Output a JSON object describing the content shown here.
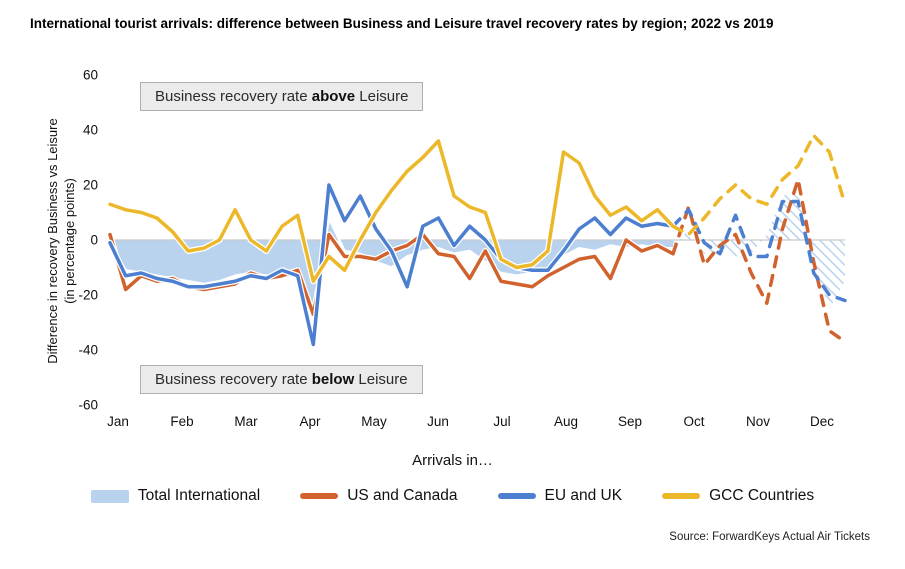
{
  "title": "International tourist arrivals: difference between Business and Leisure travel recovery rates by region; 2022 vs 2019",
  "annotations": {
    "above": {
      "prefix": "Business recovery rate ",
      "bold": "above",
      "suffix": " Leisure"
    },
    "below": {
      "prefix": "Business recovery rate ",
      "bold": "below",
      "suffix": " Leisure"
    }
  },
  "source": "Source: ForwardKeys Actual Air Tickets",
  "chart_data": {
    "type": "line",
    "title": "International tourist arrivals: difference between Business and Leisure travel recovery rates by region; 2022 vs 2019",
    "xlabel": "Arrivals in…",
    "ylabel_line1": "Difference in recovery Business vs Leisure",
    "ylabel_line2": "(in percentage points)",
    "ylim": [
      -60,
      60
    ],
    "y_ticks": [
      60,
      40,
      20,
      0,
      -20,
      -40,
      -60
    ],
    "x_tick_labels": [
      "Jan",
      "Feb",
      "Mar",
      "Apr",
      "May",
      "Jun",
      "Jul",
      "Aug",
      "Sep",
      "Oct",
      "Nov",
      "Dec"
    ],
    "points_per_month": 4,
    "forecast_start_index": 36,
    "forecast_style": "dashed-and-hatched",
    "grid": "zero-line-only",
    "zero_line_color": "#c9c9c9",
    "legend_position": "bottom",
    "series": [
      {
        "name": "Total International",
        "type": "area",
        "color": "#b9d3ee",
        "values": [
          -1,
          -11,
          -12,
          -13,
          -14,
          -15,
          -16,
          -15,
          -13,
          -12,
          -13,
          -14,
          -13,
          -25,
          8,
          -4,
          -5,
          -8,
          -10,
          -6,
          -4,
          -3,
          -5,
          -4,
          -8,
          -12,
          -13,
          -12,
          -12,
          -6,
          -3,
          -4,
          -2,
          -3,
          -2,
          -3,
          -3,
          4,
          -5,
          -4,
          -6,
          -5,
          2,
          16,
          18,
          -8,
          -25,
          -15
        ]
      },
      {
        "name": "US and Canada",
        "type": "line",
        "color": "#d2622d",
        "values": [
          2,
          -18,
          -13,
          -15,
          -14,
          -17,
          -18,
          -17,
          -16,
          -12,
          -14,
          -13,
          -11,
          -27,
          2,
          -6,
          -6,
          -7,
          -4,
          -2,
          2,
          -5,
          -6,
          -14,
          -4,
          -15,
          -16,
          -17,
          -13,
          -10,
          -7,
          -6,
          -14,
          0,
          -4,
          -2,
          -5,
          12,
          -9,
          -2,
          2,
          -12,
          -23,
          4,
          22,
          -8,
          -33,
          -37
        ]
      },
      {
        "name": "EU and UK",
        "type": "line",
        "color": "#4d7fd0",
        "values": [
          -1,
          -13,
          -12,
          -14,
          -15,
          -17,
          -17,
          -16,
          -15,
          -13,
          -14,
          -11,
          -13,
          -38,
          20,
          7,
          16,
          4,
          -4,
          -17,
          5,
          8,
          -2,
          5,
          0,
          -7,
          -10,
          -11,
          -11,
          -4,
          4,
          8,
          2,
          8,
          5,
          6,
          5,
          11,
          -1,
          -5,
          9,
          -6,
          -6,
          14,
          14,
          -12,
          -20,
          -22
        ]
      },
      {
        "name": "GCC Countries",
        "type": "line",
        "color": "#ecb82a",
        "values": [
          13,
          11,
          10,
          8,
          3,
          -4,
          -3,
          0,
          11,
          0,
          -4,
          5,
          9,
          -15,
          -6,
          -11,
          0,
          10,
          18,
          25,
          30,
          36,
          16,
          12,
          10,
          -7,
          -10,
          -9,
          -4,
          32,
          28,
          16,
          9,
          12,
          7,
          11,
          5,
          2,
          8,
          15,
          20,
          15,
          13,
          22,
          27,
          38,
          32,
          13
        ]
      }
    ]
  }
}
